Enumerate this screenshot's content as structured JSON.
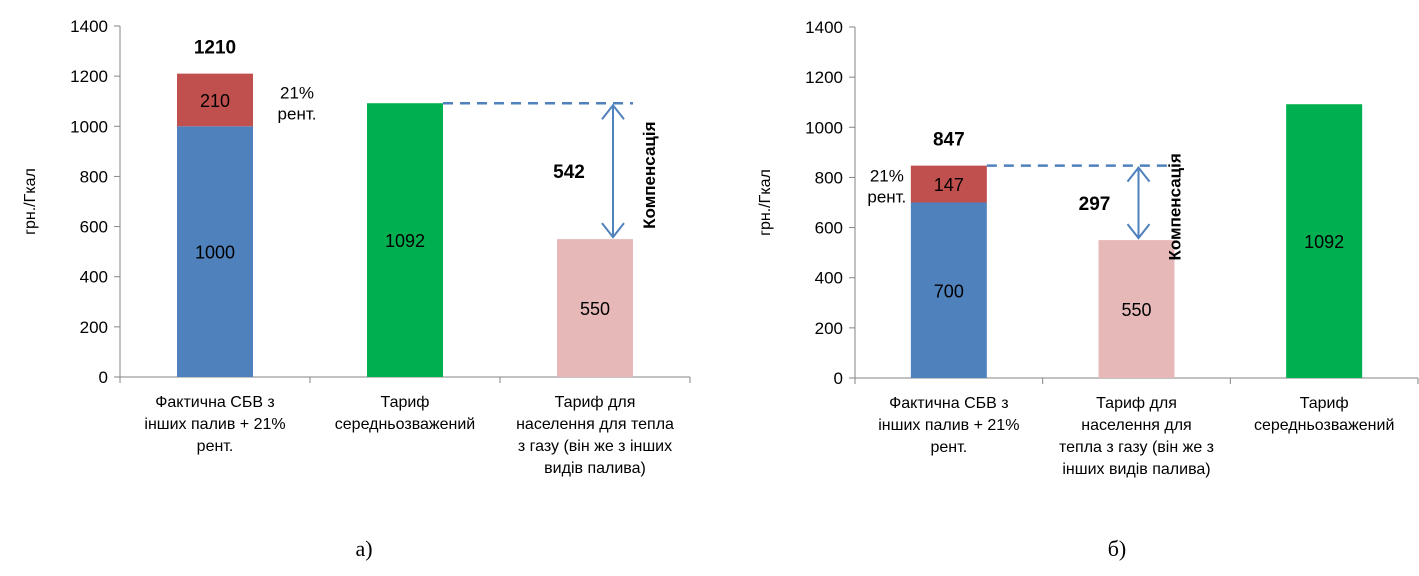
{
  "colors": {
    "factual_base": "#4F81BD",
    "rent": "#C0504D",
    "tariff_avg": "#00B050",
    "tariff_pop": "#E6B9B8",
    "arrow": "#4F81BD",
    "axis": "#868686"
  },
  "chart_data": [
    {
      "type": "bar",
      "stacked": true,
      "ylabel": "грн./Гкал",
      "ylim": [
        0,
        1400
      ],
      "yticks": [
        0,
        200,
        400,
        600,
        800,
        1000,
        1200,
        1400
      ],
      "grid": false,
      "categories": [
        [
          "Фактична СБВ з",
          "інших палив + 21%",
          "рент."
        ],
        [
          "Тариф",
          "середньозважений"
        ],
        [
          "Тариф для",
          "населення для тепла",
          "з газу (він же з інших",
          "видів палива)"
        ]
      ],
      "bars": [
        {
          "segments": [
            {
              "value": 1000,
              "label": "1000",
              "color": "factual_base"
            },
            {
              "value": 210,
              "label": "210",
              "color": "rent"
            }
          ],
          "total_label": "1210",
          "side_note": [
            "21%",
            "рент."
          ]
        },
        {
          "segments": [
            {
              "value": 1092,
              "label": "1092",
              "color": "tariff_avg"
            }
          ]
        },
        {
          "segments": [
            {
              "value": 550,
              "label": "550",
              "color": "tariff_pop"
            }
          ]
        }
      ],
      "compensation": {
        "from_bar": 1,
        "to_bar": 2,
        "top": 1092,
        "bottom": 550,
        "value_label": "542",
        "text": "Компенсація"
      },
      "caption": "а)"
    },
    {
      "type": "bar",
      "stacked": true,
      "ylabel": "грн./Гкал",
      "ylim": [
        0,
        1400
      ],
      "yticks": [
        0,
        200,
        400,
        600,
        800,
        1000,
        1200,
        1400
      ],
      "grid": false,
      "categories": [
        [
          "Фактична СБВ з",
          "інших палив + 21%",
          "рент."
        ],
        [
          "Тариф для",
          "населення для",
          "тепла з газу (він же з",
          "інших видів палива)"
        ],
        [
          "Тариф",
          "середньозважений"
        ]
      ],
      "bars": [
        {
          "segments": [
            {
              "value": 700,
              "label": "700",
              "color": "factual_base"
            },
            {
              "value": 147,
              "label": "147",
              "color": "rent"
            }
          ],
          "total_label": "847",
          "side_note": [
            "21%",
            "рент."
          ]
        },
        {
          "segments": [
            {
              "value": 550,
              "label": "550",
              "color": "tariff_pop"
            }
          ]
        },
        {
          "segments": [
            {
              "value": 1092,
              "label": "1092",
              "color": "tariff_avg"
            }
          ]
        }
      ],
      "compensation": {
        "from_bar": 0,
        "to_bar": 1,
        "top": 847,
        "bottom": 550,
        "value_label": "297",
        "text": "Компенсація"
      },
      "caption": "б)"
    }
  ]
}
